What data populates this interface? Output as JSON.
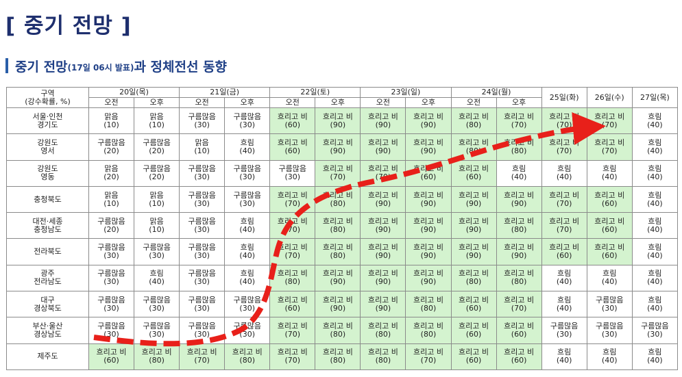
{
  "title": "[ 중기 전망 ]",
  "subtitle": {
    "main": "중기 전망",
    "note": "(17일 06시 발표)",
    "rest": "과 정체전선 동향"
  },
  "header": {
    "region_label": "구역",
    "region_sub": "(강수확률, %)",
    "days": [
      {
        "label": "20일(목)",
        "split": true
      },
      {
        "label": "21일(금)",
        "split": true
      },
      {
        "label": "22일(토)",
        "split": true
      },
      {
        "label": "23일(일)",
        "split": true
      },
      {
        "label": "24일(월)",
        "split": true
      },
      {
        "label": "25일(화)",
        "split": false
      },
      {
        "label": "26일(수)",
        "split": false
      },
      {
        "label": "27일(목)",
        "split": false
      }
    ],
    "am": "오전",
    "pm": "오후"
  },
  "rows": [
    {
      "region": [
        "서울·인천",
        "경기도"
      ],
      "cells": [
        {
          "w": "맑음",
          "p": "(10)",
          "g": false
        },
        {
          "w": "맑음",
          "p": "(10)",
          "g": false
        },
        {
          "w": "구름많음",
          "p": "(30)",
          "g": false
        },
        {
          "w": "구름많음",
          "p": "(30)",
          "g": false
        },
        {
          "w": "흐리고 비",
          "p": "(60)",
          "g": true
        },
        {
          "w": "흐리고 비",
          "p": "(90)",
          "g": true
        },
        {
          "w": "흐리고 비",
          "p": "(90)",
          "g": true
        },
        {
          "w": "흐리고 비",
          "p": "(90)",
          "g": true
        },
        {
          "w": "흐리고 비",
          "p": "(80)",
          "g": true
        },
        {
          "w": "흐리고 비",
          "p": "(70)",
          "g": true
        },
        {
          "w": "흐리고 비",
          "p": "(70)",
          "g": true
        },
        {
          "w": "흐리고 비",
          "p": "(70)",
          "g": true
        },
        {
          "w": "흐림",
          "p": "(40)",
          "g": false
        }
      ]
    },
    {
      "region": [
        "강원도",
        "영서"
      ],
      "cells": [
        {
          "w": "구름많음",
          "p": "(20)",
          "g": false
        },
        {
          "w": "구름많음",
          "p": "(20)",
          "g": false
        },
        {
          "w": "맑음",
          "p": "(10)",
          "g": false
        },
        {
          "w": "흐림",
          "p": "(40)",
          "g": false
        },
        {
          "w": "흐리고 비",
          "p": "(60)",
          "g": true
        },
        {
          "w": "흐리고 비",
          "p": "(90)",
          "g": true
        },
        {
          "w": "흐리고 비",
          "p": "(90)",
          "g": true
        },
        {
          "w": "흐리고 비",
          "p": "(90)",
          "g": true
        },
        {
          "w": "흐리고 비",
          "p": "(80)",
          "g": true
        },
        {
          "w": "흐리고 비",
          "p": "(80)",
          "g": true
        },
        {
          "w": "흐리고 비",
          "p": "(70)",
          "g": true
        },
        {
          "w": "흐리고 비",
          "p": "(70)",
          "g": true
        },
        {
          "w": "흐림",
          "p": "(40)",
          "g": false
        }
      ]
    },
    {
      "region": [
        "강원도",
        "영동"
      ],
      "cells": [
        {
          "w": "맑음",
          "p": "(20)",
          "g": false
        },
        {
          "w": "구름많음",
          "p": "(20)",
          "g": false
        },
        {
          "w": "구름많음",
          "p": "(30)",
          "g": false
        },
        {
          "w": "구름많음",
          "p": "(30)",
          "g": false
        },
        {
          "w": "구름많음",
          "p": "(30)",
          "g": false
        },
        {
          "w": "흐리고 비",
          "p": "(70)",
          "g": true
        },
        {
          "w": "흐리고 비",
          "p": "(70)",
          "g": true
        },
        {
          "w": "흐리고 비",
          "p": "(60)",
          "g": true
        },
        {
          "w": "흐리고 비",
          "p": "(60)",
          "g": true
        },
        {
          "w": "흐림",
          "p": "(40)",
          "g": false
        },
        {
          "w": "흐림",
          "p": "(40)",
          "g": false
        },
        {
          "w": "흐림",
          "p": "(40)",
          "g": false
        },
        {
          "w": "흐림",
          "p": "(40)",
          "g": false
        }
      ]
    },
    {
      "region": [
        "충청북도"
      ],
      "cells": [
        {
          "w": "맑음",
          "p": "(10)",
          "g": false
        },
        {
          "w": "맑음",
          "p": "(10)",
          "g": false
        },
        {
          "w": "구름많음",
          "p": "(30)",
          "g": false
        },
        {
          "w": "구름많음",
          "p": "(30)",
          "g": false
        },
        {
          "w": "흐리고 비",
          "p": "(70)",
          "g": true
        },
        {
          "w": "흐리고 비",
          "p": "(80)",
          "g": true
        },
        {
          "w": "흐리고 비",
          "p": "(90)",
          "g": true
        },
        {
          "w": "흐리고 비",
          "p": "(90)",
          "g": true
        },
        {
          "w": "흐리고 비",
          "p": "(90)",
          "g": true
        },
        {
          "w": "흐리고 비",
          "p": "(90)",
          "g": true
        },
        {
          "w": "흐리고 비",
          "p": "(70)",
          "g": true
        },
        {
          "w": "흐리고 비",
          "p": "(60)",
          "g": true
        },
        {
          "w": "흐림",
          "p": "(40)",
          "g": false
        }
      ]
    },
    {
      "region": [
        "대전·세종",
        "충청남도"
      ],
      "cells": [
        {
          "w": "구름많음",
          "p": "(20)",
          "g": false
        },
        {
          "w": "맑음",
          "p": "(10)",
          "g": false
        },
        {
          "w": "구름많음",
          "p": "(30)",
          "g": false
        },
        {
          "w": "흐림",
          "p": "(40)",
          "g": false
        },
        {
          "w": "흐리고 비",
          "p": "(70)",
          "g": true
        },
        {
          "w": "흐리고 비",
          "p": "(80)",
          "g": true
        },
        {
          "w": "흐리고 비",
          "p": "(90)",
          "g": true
        },
        {
          "w": "흐리고 비",
          "p": "(90)",
          "g": true
        },
        {
          "w": "흐리고 비",
          "p": "(90)",
          "g": true
        },
        {
          "w": "흐리고 비",
          "p": "(80)",
          "g": true
        },
        {
          "w": "흐리고 비",
          "p": "(70)",
          "g": true
        },
        {
          "w": "흐리고 비",
          "p": "(60)",
          "g": true
        },
        {
          "w": "흐림",
          "p": "(40)",
          "g": false
        }
      ]
    },
    {
      "region": [
        "전라북도"
      ],
      "cells": [
        {
          "w": "구름많음",
          "p": "(30)",
          "g": false
        },
        {
          "w": "구름많음",
          "p": "(30)",
          "g": false
        },
        {
          "w": "구름많음",
          "p": "(30)",
          "g": false
        },
        {
          "w": "흐림",
          "p": "(40)",
          "g": false
        },
        {
          "w": "흐리고 비",
          "p": "(70)",
          "g": true
        },
        {
          "w": "흐리고 비",
          "p": "(80)",
          "g": true
        },
        {
          "w": "흐리고 비",
          "p": "(90)",
          "g": true
        },
        {
          "w": "흐리고 비",
          "p": "(90)",
          "g": true
        },
        {
          "w": "흐리고 비",
          "p": "(90)",
          "g": true
        },
        {
          "w": "흐리고 비",
          "p": "(90)",
          "g": true
        },
        {
          "w": "흐리고 비",
          "p": "(60)",
          "g": true
        },
        {
          "w": "흐리고 비",
          "p": "(60)",
          "g": true
        },
        {
          "w": "흐림",
          "p": "(40)",
          "g": false
        }
      ]
    },
    {
      "region": [
        "광주",
        "전라남도"
      ],
      "cells": [
        {
          "w": "구름많음",
          "p": "(30)",
          "g": false
        },
        {
          "w": "흐림",
          "p": "(40)",
          "g": false
        },
        {
          "w": "구름많음",
          "p": "(30)",
          "g": false
        },
        {
          "w": "흐림",
          "p": "(40)",
          "g": false
        },
        {
          "w": "흐리고 비",
          "p": "(80)",
          "g": true
        },
        {
          "w": "흐리고 비",
          "p": "(90)",
          "g": true
        },
        {
          "w": "흐리고 비",
          "p": "(90)",
          "g": true
        },
        {
          "w": "흐리고 비",
          "p": "(90)",
          "g": true
        },
        {
          "w": "흐리고 비",
          "p": "(80)",
          "g": true
        },
        {
          "w": "흐리고 비",
          "p": "(80)",
          "g": true
        },
        {
          "w": "흐림",
          "p": "(40)",
          "g": false
        },
        {
          "w": "흐림",
          "p": "(40)",
          "g": false
        },
        {
          "w": "흐림",
          "p": "(40)",
          "g": false
        }
      ]
    },
    {
      "region": [
        "대구",
        "경상북도"
      ],
      "cells": [
        {
          "w": "구름많음",
          "p": "(30)",
          "g": false
        },
        {
          "w": "구름많음",
          "p": "(30)",
          "g": false
        },
        {
          "w": "구름많음",
          "p": "(30)",
          "g": false
        },
        {
          "w": "구름많음",
          "p": "(30)",
          "g": false
        },
        {
          "w": "흐리고 비",
          "p": "(60)",
          "g": true
        },
        {
          "w": "흐리고 비",
          "p": "(90)",
          "g": true
        },
        {
          "w": "흐리고 비",
          "p": "(90)",
          "g": true
        },
        {
          "w": "흐리고 비",
          "p": "(80)",
          "g": true
        },
        {
          "w": "흐리고 비",
          "p": "(60)",
          "g": true
        },
        {
          "w": "흐리고 비",
          "p": "(70)",
          "g": true
        },
        {
          "w": "흐림",
          "p": "(40)",
          "g": false
        },
        {
          "w": "구름많음",
          "p": "(30)",
          "g": false
        },
        {
          "w": "흐림",
          "p": "(40)",
          "g": false
        }
      ]
    },
    {
      "region": [
        "부산·울산",
        "경상남도"
      ],
      "cells": [
        {
          "w": "구름많음",
          "p": "(30)",
          "g": false
        },
        {
          "w": "구름많음",
          "p": "(30)",
          "g": false
        },
        {
          "w": "구름많음",
          "p": "(30)",
          "g": false
        },
        {
          "w": "구름많음",
          "p": "(30)",
          "g": false
        },
        {
          "w": "흐리고 비",
          "p": "(70)",
          "g": true
        },
        {
          "w": "흐리고 비",
          "p": "(80)",
          "g": true
        },
        {
          "w": "흐리고 비",
          "p": "(80)",
          "g": true
        },
        {
          "w": "흐리고 비",
          "p": "(80)",
          "g": true
        },
        {
          "w": "흐리고 비",
          "p": "(60)",
          "g": true
        },
        {
          "w": "흐리고 비",
          "p": "(60)",
          "g": true
        },
        {
          "w": "구름많음",
          "p": "(30)",
          "g": false
        },
        {
          "w": "구름많음",
          "p": "(30)",
          "g": false
        },
        {
          "w": "구름많음",
          "p": "(30)",
          "g": false
        }
      ]
    },
    {
      "region": [
        "제주도"
      ],
      "cells": [
        {
          "w": "흐리고 비",
          "p": "(60)",
          "g": true
        },
        {
          "w": "흐리고 비",
          "p": "(80)",
          "g": true
        },
        {
          "w": "흐리고 비",
          "p": "(70)",
          "g": true
        },
        {
          "w": "흐리고 비",
          "p": "(80)",
          "g": true
        },
        {
          "w": "흐리고 비",
          "p": "(70)",
          "g": true
        },
        {
          "w": "흐리고 비",
          "p": "(80)",
          "g": true
        },
        {
          "w": "흐리고 비",
          "p": "(80)",
          "g": true
        },
        {
          "w": "흐리고 비",
          "p": "(70)",
          "g": true
        },
        {
          "w": "흐리고 비",
          "p": "(60)",
          "g": true
        },
        {
          "w": "흐리고 비",
          "p": "(60)",
          "g": true
        },
        {
          "w": "흐림",
          "p": "(40)",
          "g": false
        },
        {
          "w": "흐림",
          "p": "(40)",
          "g": false
        },
        {
          "w": "흐림",
          "p": "(40)",
          "g": false
        }
      ]
    }
  ],
  "colors": {
    "rain_cell": "#d4f3cf",
    "front_arrow": "#e8201a",
    "title": "#1e2f6e"
  },
  "overlay": {
    "icon": "dashed-front-arrow-icon",
    "meaning": "정체전선 동향"
  }
}
